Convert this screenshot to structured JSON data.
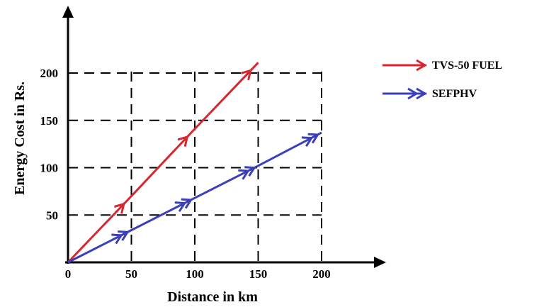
{
  "chart_data": {
    "type": "line",
    "xlabel": "Distance in km",
    "ylabel": "Energy Cost in Rs.",
    "xlim": [
      0,
      200
    ],
    "ylim": [
      0,
      200
    ],
    "x_ticks": [
      "0",
      "50",
      "100",
      "150",
      "200"
    ],
    "y_ticks": [
      "50",
      "100",
      "150",
      "200"
    ],
    "x_tick_values": [
      0,
      50,
      100,
      150,
      200
    ],
    "y_tick_values": [
      50,
      100,
      150,
      200
    ],
    "grid": "dashed",
    "legend_position": "top-right",
    "series": [
      {
        "name": "TVS-50 FUEL",
        "color": "#d8262f",
        "marker": "single-arrow",
        "x": [
          0,
          50,
          100,
          150
        ],
        "y": [
          0,
          70,
          141,
          211
        ]
      },
      {
        "name": "SEFPHV",
        "color": "#3b3fb8",
        "marker": "double-arrow",
        "x": [
          0,
          50,
          100,
          150,
          200
        ],
        "y": [
          0,
          34,
          68,
          102,
          137
        ]
      }
    ]
  }
}
